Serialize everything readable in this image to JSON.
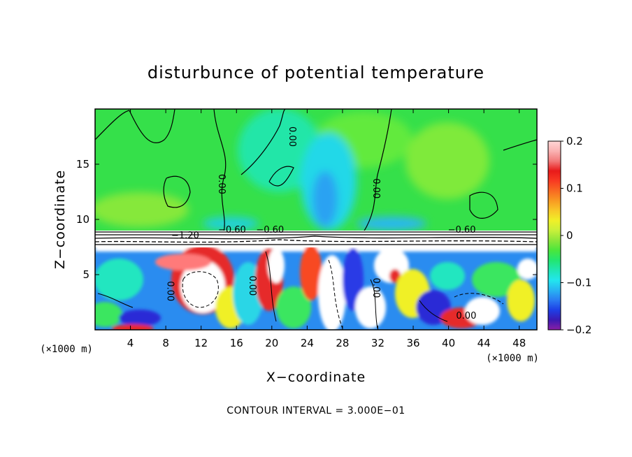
{
  "chart_data": {
    "type": "heatmap",
    "title": "disturbunce of potential temperature",
    "xlabel": "X−coordinate",
    "ylabel": "Z−coordinate",
    "x_unit": "(×1000 m)",
    "y_unit": "(×1000 m)",
    "footer": "CONTOUR INTERVAL = 3.000E−01",
    "xlim": [
      0,
      50
    ],
    "ylim": [
      0,
      20
    ],
    "x_ticks": [
      4,
      8,
      12,
      16,
      20,
      24,
      28,
      32,
      36,
      40,
      44,
      48
    ],
    "y_ticks": [
      5,
      10,
      15
    ],
    "colorbar": {
      "min": -0.2,
      "max": 0.2,
      "tick_values": [
        0.2,
        0.1,
        0,
        -0.1,
        -0.2
      ],
      "tick_labels": [
        "0.2",
        "0.1",
        "0",
        "−0.1",
        "−0.2"
      ],
      "colors": [
        "#8a1fa6",
        "#3a1ab4",
        "#1e3fe6",
        "#2a7cf2",
        "#28b4f2",
        "#22e6ee",
        "#20e6b4",
        "#22e670",
        "#4ae63c",
        "#8ce63a",
        "#c8f03a",
        "#f0f028",
        "#f8c828",
        "#f89a22",
        "#f86a22",
        "#f83a22",
        "#e81a1a",
        "#f27a7a",
        "#fab2b2",
        "#ffd6d6"
      ]
    },
    "contour_labels": [
      {
        "text": "−1.20",
        "x": 10.2,
        "z": 8.3
      },
      {
        "text": "−0.60",
        "x": 15.5,
        "z": 8.8
      },
      {
        "text": "−0.60",
        "x": 19.8,
        "z": 8.8
      },
      {
        "text": "−0.60",
        "x": 41.5,
        "z": 8.8
      },
      {
        "text": "0.00",
        "x": 14.0,
        "z": 13.2
      },
      {
        "text": "0.00",
        "x": 22.0,
        "z": 17.5
      },
      {
        "text": "0.00",
        "x": 31.5,
        "z": 12.8
      },
      {
        "text": "0.00",
        "x": 8.2,
        "z": 3.5
      },
      {
        "text": "0.00",
        "x": 17.5,
        "z": 4.0
      },
      {
        "text": "0.00",
        "x": 31.5,
        "z": 3.8
      },
      {
        "text": "0.00",
        "x": 42.0,
        "z": 1.0
      }
    ],
    "grid": false
  }
}
